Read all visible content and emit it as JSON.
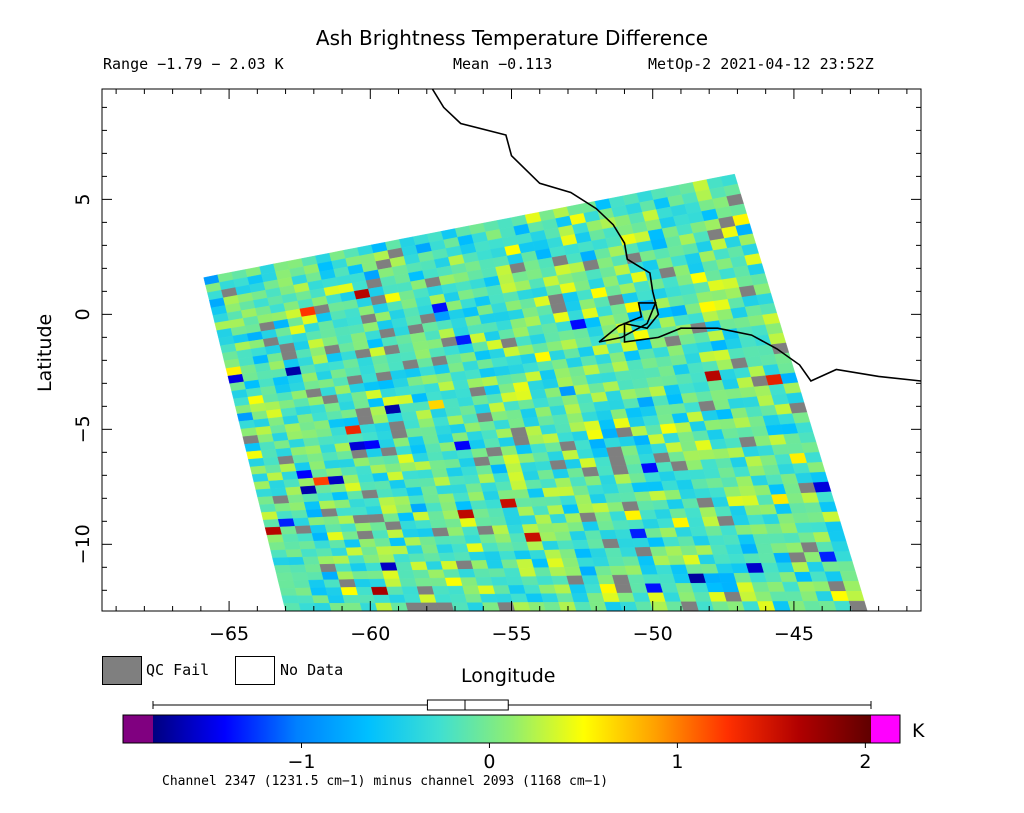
{
  "header": {
    "title": "Ash Brightness Temperature Difference",
    "range_text": "Range −1.79 − 2.03 K",
    "mean_text": "Mean −0.113",
    "satellite_text": "MetOp-2 2021-04-12 23:52Z"
  },
  "map": {
    "xlabel": "Longitude",
    "ylabel": "Latitude",
    "xlim": [
      -69.5,
      -40.5
    ],
    "ylim": [
      -12.9,
      9.8
    ],
    "x_ticks": [
      -65,
      -60,
      -55,
      -50,
      -45
    ],
    "x_tick_labels": [
      "−65",
      "−60",
      "−55",
      "−50",
      "−45"
    ],
    "y_ticks": [
      5,
      0,
      -5,
      -10
    ],
    "y_tick_labels": [
      "5",
      "0",
      "−5",
      "−10"
    ],
    "swath_corners_lonlat": [
      [
        -65.9,
        1.6
      ],
      [
        -47.1,
        6.1
      ],
      [
        -42.4,
        -12.9
      ],
      [
        -63.0,
        -12.9
      ]
    ],
    "coastline_lonlat": [
      [
        -57.8,
        9.8
      ],
      [
        -57.4,
        9.0
      ],
      [
        -56.8,
        8.3
      ],
      [
        -55.2,
        7.8
      ],
      [
        -55.0,
        6.9
      ],
      [
        -54.0,
        5.7
      ],
      [
        -52.9,
        5.3
      ],
      [
        -52.0,
        4.6
      ],
      [
        -51.4,
        3.9
      ],
      [
        -51.0,
        3.1
      ],
      [
        -50.9,
        2.4
      ],
      [
        -50.1,
        1.8
      ],
      [
        -50.0,
        1.0
      ],
      [
        -49.8,
        0.0
      ],
      [
        -50.2,
        -0.6
      ],
      [
        -51.0,
        -0.4
      ],
      [
        -51.0,
        -1.2
      ],
      [
        -49.8,
        -1.0
      ],
      [
        -49.0,
        -0.6
      ],
      [
        -47.7,
        -0.6
      ],
      [
        -46.5,
        -0.9
      ],
      [
        -45.6,
        -1.5
      ],
      [
        -44.8,
        -2.2
      ],
      [
        -44.4,
        -2.9
      ],
      [
        -43.5,
        -2.4
      ],
      [
        -42.0,
        -2.7
      ],
      [
        -40.5,
        -2.9
      ]
    ],
    "island_lonlat": [
      [
        -51.9,
        -1.2
      ],
      [
        -51.2,
        -0.5
      ],
      [
        -50.4,
        -0.1
      ],
      [
        -50.5,
        0.5
      ],
      [
        -49.9,
        0.5
      ],
      [
        -50.2,
        -0.4
      ],
      [
        -51.1,
        -1.0
      ],
      [
        -51.9,
        -1.2
      ]
    ]
  },
  "legend": {
    "qc_fail_label": "QC Fail",
    "no_data_label": "No Data",
    "qc_fail_color": "#7f7f7f",
    "no_data_color": "#ffffff"
  },
  "colorbar": {
    "vmin": -1.79,
    "vmax": 2.03,
    "mean": -0.113,
    "unit": "K",
    "tick_values": [
      -1,
      0,
      1,
      2
    ],
    "tick_labels": [
      "−1",
      "0",
      "1",
      "2"
    ],
    "boxplot": {
      "min": -1.79,
      "q1": -0.33,
      "median": -0.13,
      "q3": 0.1,
      "max": 2.03
    },
    "under_color": "#800080",
    "over_color": "#ff00ff",
    "stops": [
      "#000080",
      "#0000ff",
      "#0080ff",
      "#00c0ff",
      "#40e0d0",
      "#90ee70",
      "#ffff00",
      "#ffa000",
      "#ff3000",
      "#b00000",
      "#600000"
    ]
  },
  "footnote": "Channel 2347 (1231.5 cm−1) minus channel 2093 (1168 cm−1)"
}
